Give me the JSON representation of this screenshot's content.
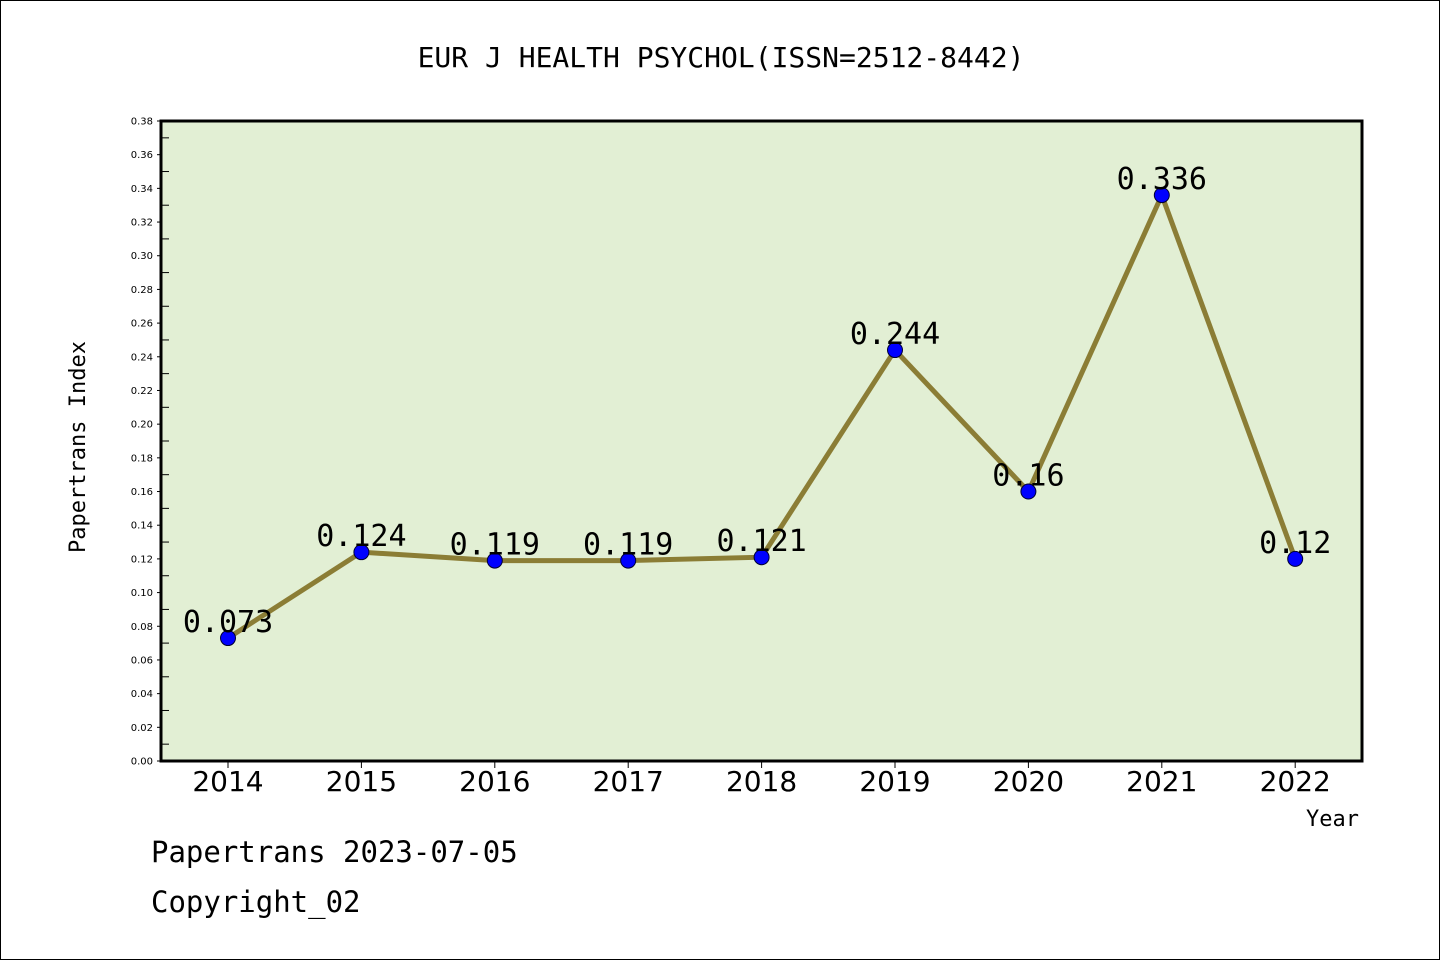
{
  "chart_data": {
    "type": "line",
    "title": "EUR J HEALTH PSYCHOL(ISSN=2512-8442)",
    "xlabel": "Year",
    "ylabel": "Papertrans Index",
    "categories": [
      "2014",
      "2015",
      "2016",
      "2017",
      "2018",
      "2019",
      "2020",
      "2021",
      "2022"
    ],
    "series": [
      {
        "values": [
          0.073,
          0.124,
          0.119,
          0.119,
          0.121,
          0.244,
          0.16,
          0.336,
          0.12
        ]
      }
    ],
    "data_labels": [
      "0.073",
      "0.124",
      "0.119",
      "0.119",
      "0.121",
      "0.244",
      "0.16",
      "0.336",
      "0.12"
    ],
    "ylim": [
      0,
      0.38
    ],
    "y_major_ticks": [
      "0.00",
      "0.02",
      "0.04",
      "0.06",
      "0.08",
      "0.10",
      "0.12",
      "0.14",
      "0.16",
      "0.18",
      "0.20",
      "0.22",
      "0.24",
      "0.26",
      "0.28",
      "0.30",
      "0.32",
      "0.34",
      "0.36",
      "0.38"
    ],
    "grid": false,
    "colors": {
      "plot_background": "#e2efd4",
      "line": "#8b7d35",
      "marker": "#0000ff"
    }
  },
  "footer": {
    "line1": "Papertrans 2023-07-05",
    "line2": "Copyright_02"
  }
}
